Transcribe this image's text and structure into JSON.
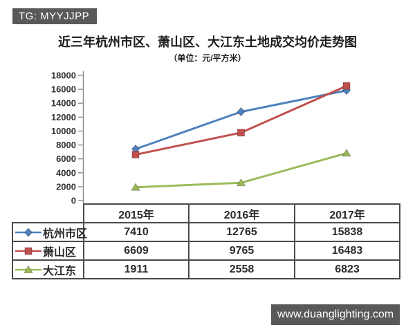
{
  "watermarks": {
    "top_left": "TG: MYYJJPP",
    "bottom_right": "www.duanglighting.com"
  },
  "colors": {
    "badge_bg": "#59595b",
    "axis": "#8f8f8f",
    "table_border": "#4b4b4b"
  },
  "chart_data": {
    "type": "line",
    "title": "近三年杭州市区、萧山区、大江东土地成交均价走势图",
    "subtitle": "（单位：元/平方米）",
    "categories": [
      "2015年",
      "2016年",
      "2017年"
    ],
    "series": [
      {
        "name": "杭州市区",
        "values": [
          7410,
          12765,
          15838
        ],
        "color": "#4F81BD",
        "marker": "diamond"
      },
      {
        "name": "萧山区",
        "values": [
          6609,
          9765,
          16483
        ],
        "color": "#C0504D",
        "marker": "square"
      },
      {
        "name": "大江东",
        "values": [
          1911,
          2558,
          6823
        ],
        "color": "#9BBB59",
        "marker": "triangle"
      }
    ],
    "ylim": [
      0,
      18000
    ],
    "ytick_step": 2000,
    "grid": false,
    "legend_position": "table-rows-left"
  }
}
